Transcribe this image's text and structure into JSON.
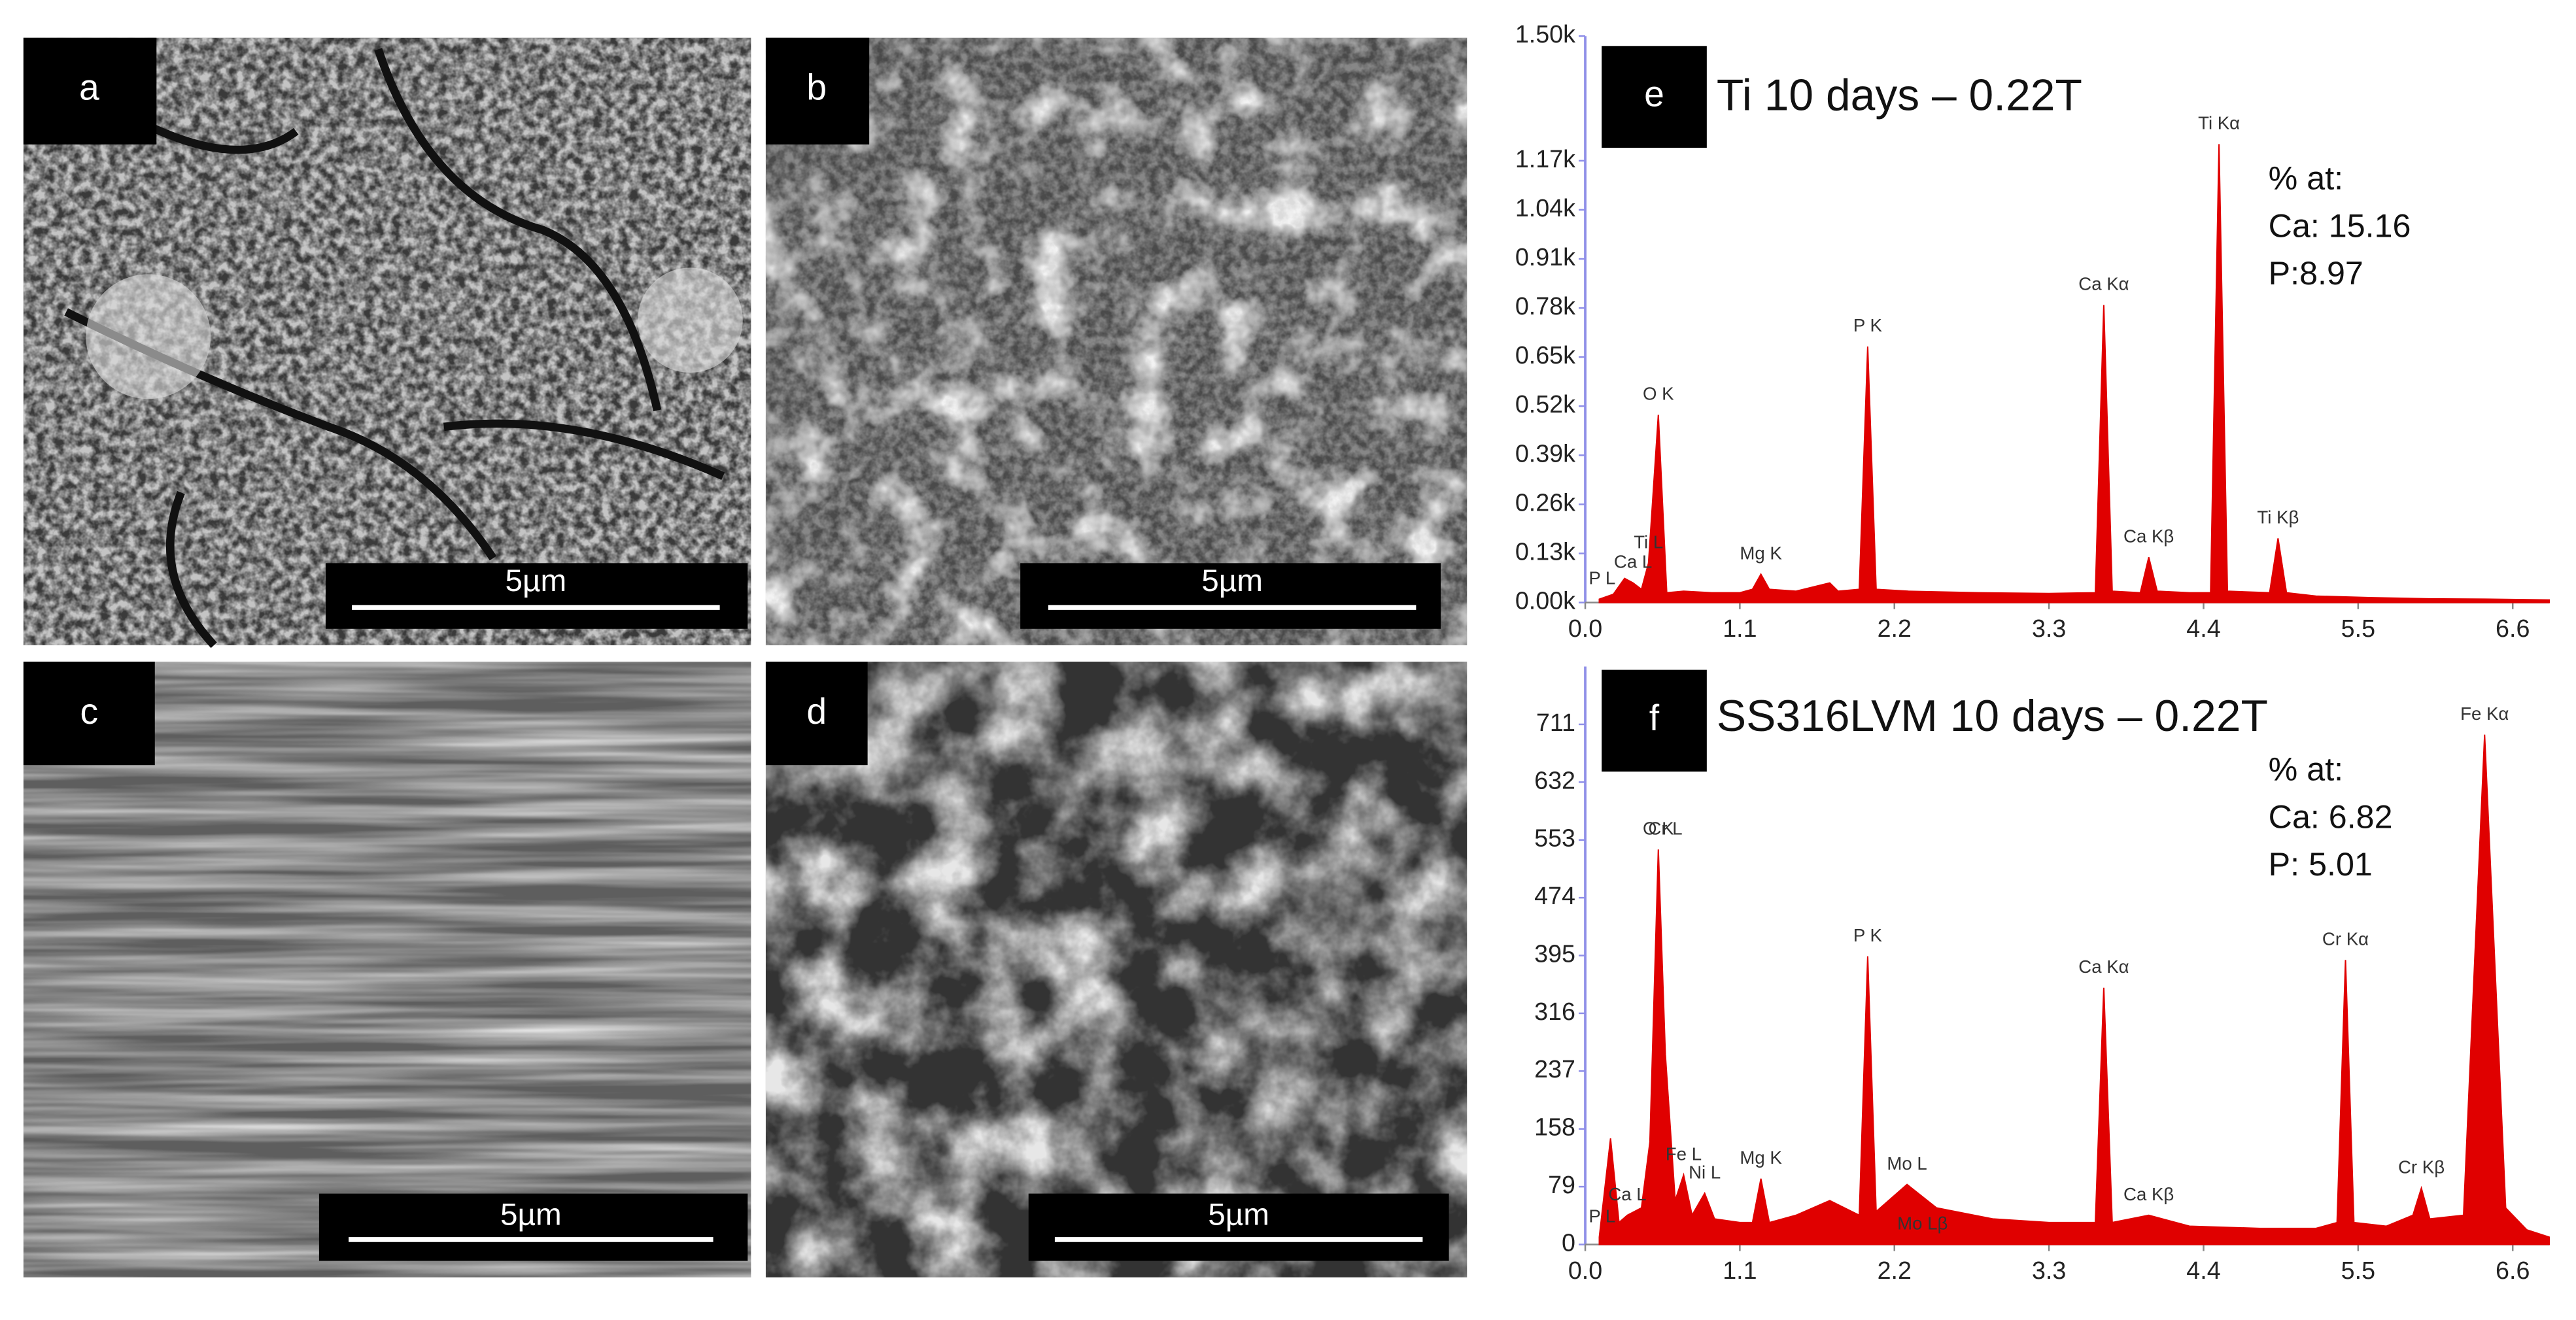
{
  "images": [
    {
      "label": "a",
      "scale_bar": "5µm"
    },
    {
      "label": "b",
      "scale_bar": "5µm"
    },
    {
      "label": "c",
      "scale_bar": "5µm"
    },
    {
      "label": "d",
      "scale_bar": "5µm"
    }
  ],
  "chart_data": [
    {
      "type": "area",
      "panel_label": "e",
      "title": "Ti 10 days – 0.22T",
      "color": "#e00000",
      "annotations": [
        "% at:",
        "Ca: 15.16",
        "P:8.97"
      ],
      "x": [
        0.1,
        0.2,
        0.28,
        0.34,
        0.4,
        0.45,
        0.52,
        0.58,
        0.7,
        0.9,
        1.1,
        1.19,
        1.25,
        1.31,
        1.5,
        1.74,
        1.8,
        1.95,
        2.01,
        2.07,
        2.3,
        2.8,
        3.3,
        3.63,
        3.69,
        3.75,
        3.95,
        4.01,
        4.07,
        4.3,
        4.45,
        4.51,
        4.57,
        4.87,
        4.93,
        4.99,
        5.2,
        5.6,
        6.0,
        6.4,
        6.86
      ],
      "values": [
        9,
        22,
        64,
        52,
        35,
        104,
        497,
        26,
        30,
        26,
        26,
        35,
        75,
        35,
        30,
        52,
        30,
        35,
        678,
        35,
        30,
        26,
        24,
        26,
        788,
        30,
        26,
        120,
        30,
        26,
        26,
        1214,
        30,
        26,
        170,
        26,
        17,
        13,
        10,
        9,
        7
      ],
      "peaks": [
        {
          "label": "P  L",
          "energy": 0.12
        },
        {
          "label": "Ca L",
          "energy": 0.34
        },
        {
          "label": "Ti L",
          "energy": 0.45
        },
        {
          "label": "O  K",
          "energy": 0.52
        },
        {
          "label": "Mg K",
          "energy": 1.25
        },
        {
          "label": "P  K",
          "energy": 2.01
        },
        {
          "label": "Ca Kα",
          "energy": 3.69
        },
        {
          "label": "Ca Kβ",
          "energy": 4.01
        },
        {
          "label": "Ti Kα",
          "energy": 4.51
        },
        {
          "label": "Ti Kβ",
          "energy": 4.93
        }
      ],
      "xlim": [
        0,
        6.86
      ],
      "xticks": [
        {
          "value": 0,
          "label": "0.0"
        },
        1.1,
        2.2,
        3.3,
        4.4,
        5.5,
        6.6
      ],
      "ylim": [
        0,
        1500
      ],
      "yticks": [
        {
          "value": 0,
          "label": "0.00k"
        },
        {
          "value": 130,
          "label": "0.13k"
        },
        {
          "value": 260,
          "label": "0.26k"
        },
        {
          "value": 390,
          "label": "0.39k"
        },
        {
          "value": 520,
          "label": "0.52k"
        },
        {
          "value": 650,
          "label": "0.65k"
        },
        {
          "value": 780,
          "label": "0.78k"
        },
        {
          "value": 910,
          "label": "0.91k"
        },
        {
          "value": 1040,
          "label": "1.04k"
        },
        {
          "value": 1170,
          "label": "1.17k"
        },
        {
          "value": 1500,
          "label": "1.50k"
        }
      ]
    },
    {
      "type": "area",
      "panel_label": "f",
      "title": "SS316LVM 10 days – 0.22T",
      "color": "#e00000",
      "annotations": [
        "% at:",
        "Ca: 6.82",
        "P: 5.01"
      ],
      "x": [
        0.1,
        0.18,
        0.24,
        0.3,
        0.4,
        0.46,
        0.52,
        0.57,
        0.64,
        0.7,
        0.76,
        0.85,
        0.92,
        1.1,
        1.19,
        1.25,
        1.31,
        1.5,
        1.74,
        1.95,
        2.01,
        2.07,
        2.29,
        2.5,
        2.9,
        3.3,
        3.63,
        3.69,
        3.75,
        4.01,
        4.3,
        4.8,
        5.2,
        5.35,
        5.41,
        5.47,
        5.7,
        5.89,
        5.95,
        6.01,
        6.25,
        6.4,
        6.55,
        6.7,
        6.86
      ],
      "values": [
        10,
        145,
        30,
        40,
        50,
        140,
        540,
        260,
        60,
        95,
        40,
        70,
        35,
        30,
        30,
        90,
        30,
        40,
        60,
        40,
        394,
        45,
        82,
        50,
        35,
        30,
        30,
        351,
        30,
        40,
        25,
        22,
        22,
        30,
        389,
        30,
        25,
        40,
        77,
        35,
        40,
        697,
        50,
        20,
        10
      ],
      "peaks": [
        {
          "label": "P  L",
          "energy": 0.12
        },
        {
          "label": "Ca L",
          "energy": 0.3
        },
        {
          "label": "Cr L",
          "energy": 0.57
        },
        {
          "label": "O  K",
          "energy": 0.52
        },
        {
          "label": "Fe L",
          "energy": 0.7
        },
        {
          "label": "Ni L",
          "energy": 0.85
        },
        {
          "label": "Mg K",
          "energy": 1.25
        },
        {
          "label": "P  K",
          "energy": 2.01
        },
        {
          "label": "Mo L",
          "energy": 2.29
        },
        {
          "label": "Mo Lβ",
          "energy": 2.4
        },
        {
          "label": "Ca Kα",
          "energy": 3.69
        },
        {
          "label": "Ca Kβ",
          "energy": 4.01
        },
        {
          "label": "Cr Kα",
          "energy": 5.41
        },
        {
          "label": "Cr Kβ",
          "energy": 5.95
        },
        {
          "label": "Fe Kα",
          "energy": 6.4
        }
      ],
      "xlim": [
        0,
        6.86
      ],
      "xticks": [
        {
          "value": 0,
          "label": "0.0"
        },
        1.1,
        2.2,
        3.3,
        4.4,
        5.5,
        6.6
      ],
      "ylim": [
        0,
        790
      ],
      "yticks": [
        0,
        79,
        158,
        237,
        316,
        395,
        474,
        553,
        632,
        711
      ]
    }
  ]
}
